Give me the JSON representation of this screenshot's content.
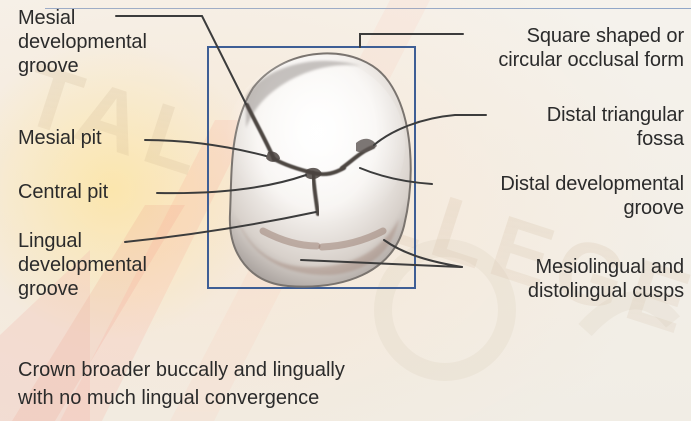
{
  "labels": {
    "mesial_developmental_groove": {
      "line1": "Mesial",
      "line2": "developmental",
      "line3": "groove"
    },
    "mesial_pit": "Mesial pit",
    "central_pit": "Central pit",
    "lingual_developmental_groove": {
      "line1": "Lingual",
      "line2": "developmental",
      "line3": "groove"
    },
    "square_shaped_occlusal_form": {
      "line1": "Square shaped or",
      "line2": "circular occlusal form"
    },
    "distal_triangular_fossa": {
      "line1": "Distal triangular",
      "line2": "fossa"
    },
    "distal_developmental_groove": {
      "line1": "Distal developmental",
      "line2": "groove"
    },
    "mesiolingual_distolingual_cusps": {
      "line1": "Mesiolingual and",
      "line2": "distolingual cusps"
    }
  },
  "caption": {
    "line1": "Crown broader buccally and lingually",
    "line2": "with no much lingual convergence"
  },
  "watermark_text": "TAL COLLEGE"
}
